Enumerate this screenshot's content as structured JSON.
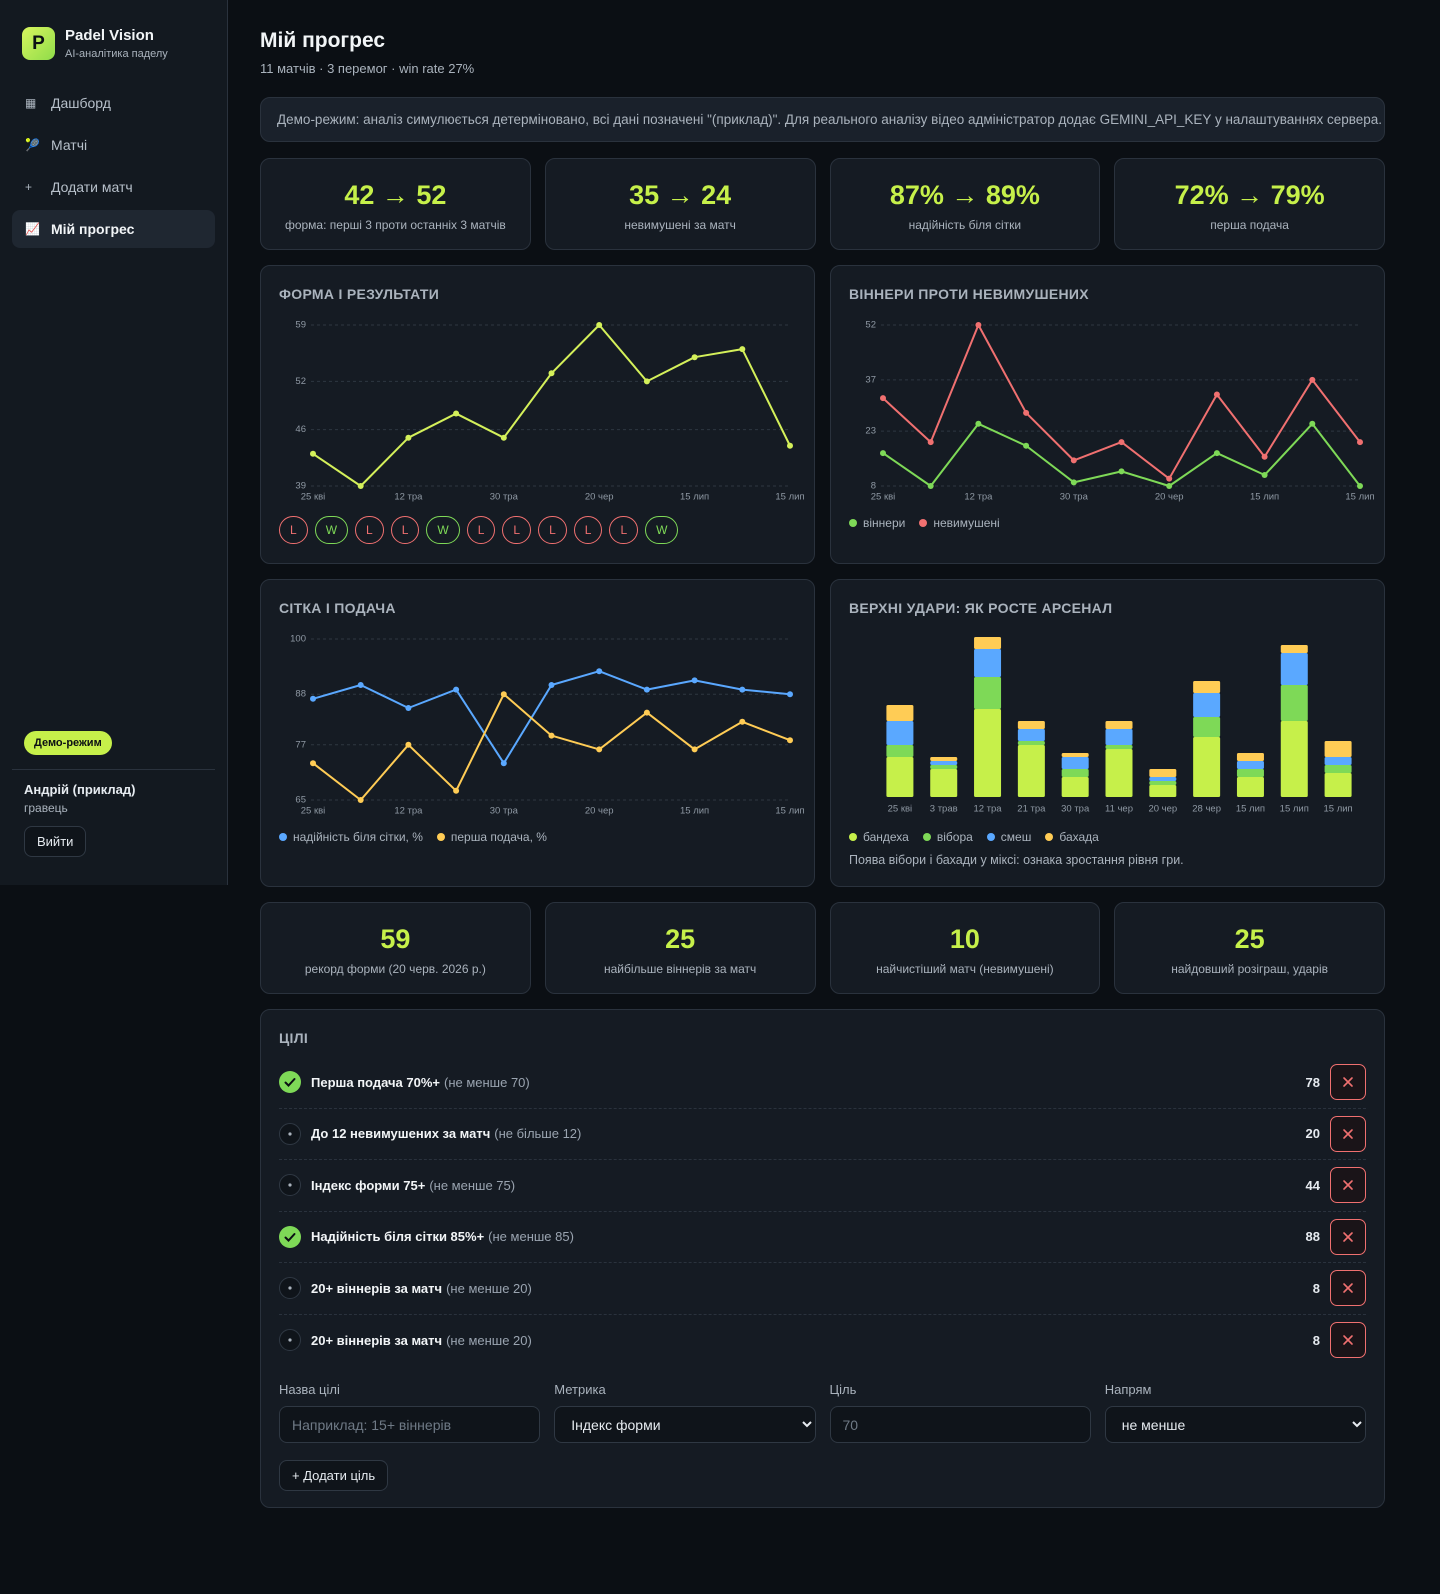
{
  "sidebar": {
    "logo": "P",
    "brand": "Padel Vision",
    "tagline": "AI-аналітика паделу",
    "nav": [
      {
        "icon": "▦",
        "label": "Дашборд"
      },
      {
        "icon": "🎾",
        "label": "Матчі"
      },
      {
        "icon": "+",
        "label": "Додати матч"
      },
      {
        "icon": "📈",
        "label": "Мій прогрес",
        "active": true
      }
    ],
    "badge": "Демо-режим",
    "user": "Андрій (приклад)",
    "role": "гравець",
    "logout": "Вийти"
  },
  "header": {
    "title": "Мій прогрес",
    "subtitle": "11 матчів · 3 перемог · win rate 27%"
  },
  "notice": "Демо-режим: аналіз симулюється детерміновано, всі дані позначені \"(приклад)\". Для реального аналізу відео адміністратор додає GEMINI_API_KEY у налаштуваннях сервера.",
  "kpis": [
    {
      "value": "42 → 52",
      "label": "форма: перші 3 проти останніх 3 матчів"
    },
    {
      "value": "35 → 24",
      "label": "невимушені за матч"
    },
    {
      "value": "87% → 89%",
      "label": "надійність біля сітки"
    },
    {
      "value": "72% → 79%",
      "label": "перша подача"
    }
  ],
  "chart_data": [
    {
      "type": "line",
      "title": "ФОРМА І РЕЗУЛЬТАТИ",
      "categories": [
        "25 кві",
        null,
        "12 тра",
        null,
        "30 тра",
        null,
        "20 чер",
        null,
        "15 лип",
        null,
        "15 лип"
      ],
      "values": [
        43,
        39,
        45,
        48,
        45,
        53,
        59,
        52,
        55,
        56,
        44
      ],
      "color": "#d4f05a",
      "ylim": [
        39,
        59
      ],
      "yticks": [
        39,
        46,
        52,
        59
      ],
      "grid": true,
      "results": [
        "L",
        "W",
        "L",
        "L",
        "W",
        "L",
        "L",
        "L",
        "L",
        "L",
        "W"
      ],
      "result_colors": {
        "W": "#7ed957",
        "L": "#f07070"
      }
    },
    {
      "type": "line",
      "title": "ВІННЕРИ ПРОТИ НЕВИМУШЕНИХ",
      "categories": [
        "25 кві",
        null,
        "12 тра",
        null,
        "30 тра",
        null,
        "20 чер",
        null,
        "15 лип",
        null,
        "15 лип"
      ],
      "series": [
        {
          "name": "віннери",
          "color": "#7ed957",
          "values": [
            17,
            8,
            25,
            19,
            9,
            12,
            8,
            17,
            11,
            25,
            8
          ]
        },
        {
          "name": "невимушені",
          "color": "#f07070",
          "values": [
            32,
            20,
            52,
            28,
            15,
            20,
            10,
            33,
            16,
            37,
            20
          ]
        }
      ],
      "ylim": [
        8,
        52
      ],
      "yticks": [
        8,
        23,
        37,
        52
      ],
      "grid": true
    },
    {
      "type": "line",
      "title": "СІТКА І ПОДАЧА",
      "categories": [
        "25 кві",
        null,
        "12 тра",
        null,
        "30 тра",
        null,
        "20 чер",
        null,
        "15 лип",
        null,
        "15 лип"
      ],
      "series": [
        {
          "name": "надійність біля сітки, %",
          "color": "#5aa8ff",
          "values": [
            87,
            90,
            85,
            89,
            73,
            90,
            93,
            89,
            91,
            89,
            88
          ]
        },
        {
          "name": "перша подача, %",
          "color": "#ffcc55",
          "values": [
            73,
            65,
            77,
            67,
            88,
            79,
            76,
            84,
            76,
            82,
            78
          ]
        }
      ],
      "ylim": [
        65,
        100
      ],
      "yticks": [
        65,
        77,
        88,
        100
      ],
      "grid": true
    },
    {
      "type": "bar",
      "stacked": true,
      "title": "ВЕРХНІ УДАРИ: ЯК РОСТЕ АРСЕНАЛ",
      "categories": [
        "25 кві",
        "3 трав",
        "12 тра",
        "21 тра",
        "30 тра",
        "11 чер",
        "20 чер",
        "28 чер",
        "15 лип",
        "15 лип",
        "15 лип"
      ],
      "series": [
        {
          "name": "бандеха",
          "color": "#c6f04a",
          "values": [
            10,
            7,
            22,
            13,
            5,
            12,
            3,
            15,
            5,
            19,
            6
          ]
        },
        {
          "name": "вібора",
          "color": "#7ed957",
          "values": [
            3,
            1,
            8,
            1,
            2,
            1,
            1,
            5,
            2,
            9,
            2
          ]
        },
        {
          "name": "смеш",
          "color": "#5aa8ff",
          "values": [
            6,
            1,
            7,
            3,
            3,
            4,
            1,
            6,
            2,
            8,
            2
          ]
        },
        {
          "name": "бахада",
          "color": "#ffcc55",
          "values": [
            4,
            1,
            3,
            2,
            1,
            2,
            2,
            3,
            2,
            2,
            4
          ]
        }
      ],
      "note": "Поява вібори і бахади у міксі: ознака зростання рівня гри."
    }
  ],
  "records": [
    {
      "value": 59,
      "label": "рекорд форми (20 черв. 2026 р.)"
    },
    {
      "value": 25,
      "label": "найбільше віннерів за матч"
    },
    {
      "value": 10,
      "label": "найчистіший матч (невимушені)"
    },
    {
      "value": 25,
      "label": "найдовший розіграш, ударів"
    }
  ],
  "goals": {
    "title": "ЦІЛІ",
    "items": [
      {
        "name": "Перша подача 70%+",
        "hint": "(не менше 70)",
        "value": 78,
        "done": true
      },
      {
        "name": "До 12 невимушених за матч",
        "hint": "(не більше 12)",
        "value": 20,
        "done": false
      },
      {
        "name": "Індекс форми 75+",
        "hint": "(не менше 75)",
        "value": 44,
        "done": false
      },
      {
        "name": "Надійність біля сітки 85%+",
        "hint": "(не менше 85)",
        "value": 88,
        "done": true
      },
      {
        "name": "20+ віннерів за матч",
        "hint": "(не менше 20)",
        "value": 8,
        "done": false
      },
      {
        "name": "20+ віннерів за матч",
        "hint": "(не менше 20)",
        "value": 8,
        "done": false
      }
    ]
  },
  "form": {
    "fields": [
      {
        "label": "Назва цілі",
        "placeholder": "Наприклад: 15+ віннерів"
      },
      {
        "label": "Метрика",
        "option": "Індекс форми"
      },
      {
        "label": "Ціль",
        "placeholder": "70"
      },
      {
        "label": "Напрям",
        "option": "не менше"
      }
    ],
    "submit": "+ Додати ціль"
  }
}
